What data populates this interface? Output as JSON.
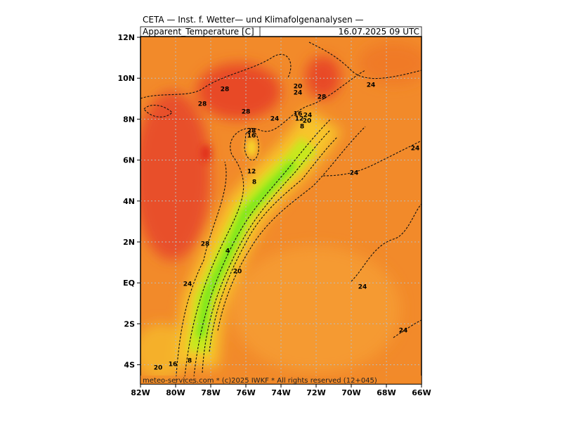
{
  "header": {
    "title": "CETA — Inst. f. Wetter— und Klimafolgenanalysen —",
    "field": "Apparent_Temperature [C]",
    "datetime": "16.07.2025 09 UTC"
  },
  "axes": {
    "lat_labels": [
      "12N",
      "10N",
      "8N",
      "6N",
      "4N",
      "2N",
      "EQ",
      "2S",
      "4S"
    ],
    "lon_labels": [
      "82W",
      "80W",
      "78W",
      "76W",
      "74W",
      "72W",
      "70W",
      "68W",
      "66W"
    ]
  },
  "contour_labels": [
    "28",
    "28",
    "28",
    "24",
    "20",
    "24",
    "28",
    "24",
    "16",
    "12",
    "24",
    "20",
    "8",
    "28",
    "16",
    "24",
    "24",
    "12",
    "8",
    "28",
    "4",
    "20",
    "24",
    "24",
    "24",
    "8",
    "16",
    "20"
  ],
  "footer": "meteo-services.com * (c)2025 IWKF * All rights reserved (12+045)"
}
